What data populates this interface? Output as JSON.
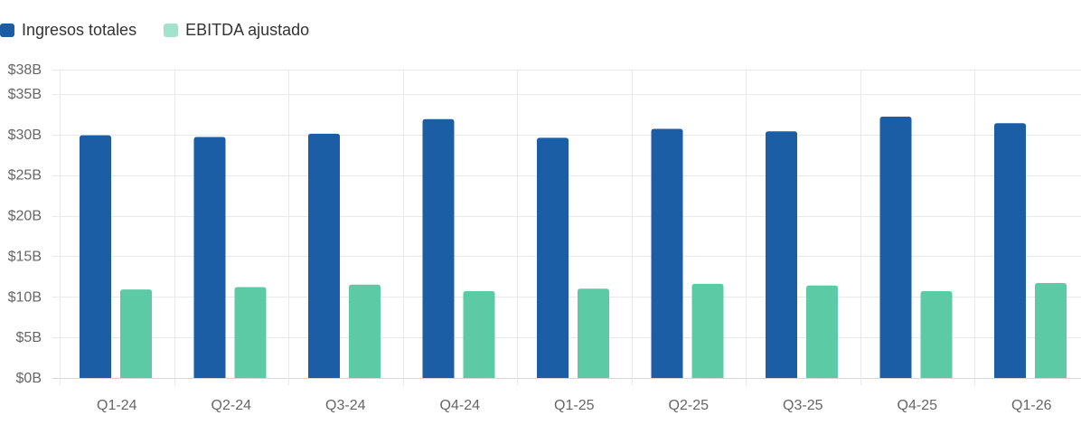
{
  "chart_data": {
    "type": "bar",
    "categories": [
      "Q1-24",
      "Q2-24",
      "Q3-24",
      "Q4-24",
      "Q1-25",
      "Q2-25",
      "Q3-25",
      "Q4-25",
      "Q1-26"
    ],
    "series": [
      {
        "name": "Ingresos totales",
        "color": "#1b5ea6",
        "values": [
          29.9,
          29.7,
          30.1,
          31.9,
          29.6,
          30.7,
          30.4,
          32.2,
          31.4
        ]
      },
      {
        "name": "EBITDA ajustado",
        "color": "#5ccaa5",
        "values": [
          10.9,
          11.2,
          11.5,
          10.7,
          11.0,
          11.6,
          11.4,
          10.7,
          11.7
        ]
      }
    ],
    "y_ticks": [
      {
        "value": 0,
        "label": "$0B"
      },
      {
        "value": 5,
        "label": "$5B"
      },
      {
        "value": 10,
        "label": "$10B"
      },
      {
        "value": 15,
        "label": "$15B"
      },
      {
        "value": 20,
        "label": "$20B"
      },
      {
        "value": 25,
        "label": "$25B"
      },
      {
        "value": 30,
        "label": "$30B"
      },
      {
        "value": 35,
        "label": "$35B"
      },
      {
        "value": 38,
        "label": "$38B"
      }
    ],
    "ylim": [
      0,
      38
    ],
    "grid": true,
    "legend_position": "top-left",
    "legend_swatch_colors": [
      "#1b5ea6",
      "#a3e3cc"
    ]
  }
}
